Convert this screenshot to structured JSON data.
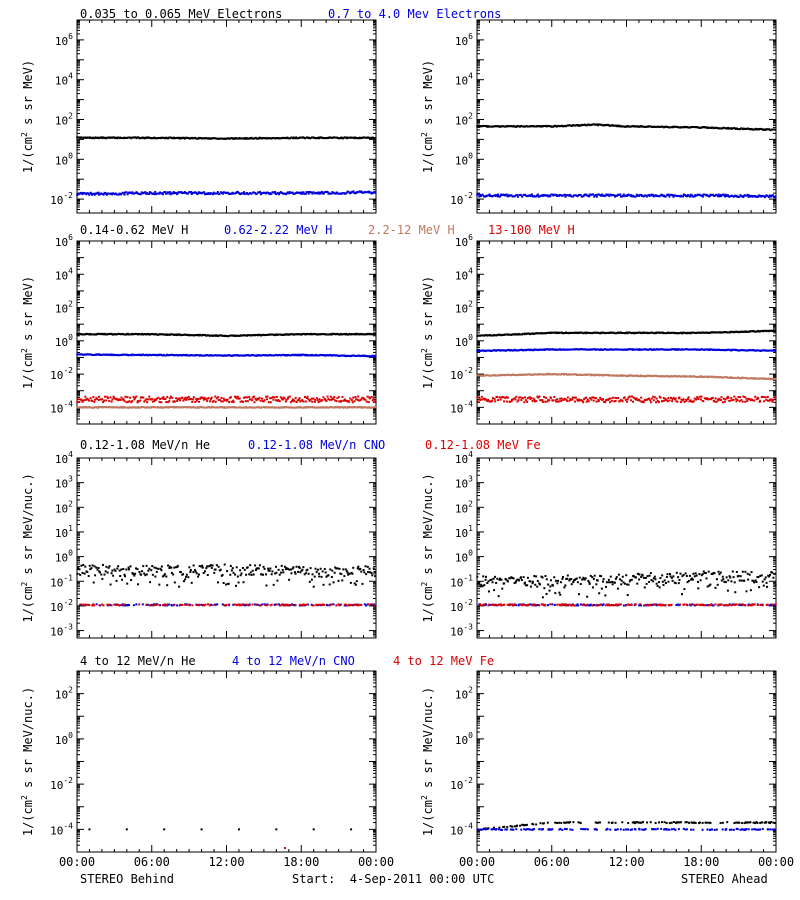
{
  "colors": {
    "black": "#000000",
    "blue": "#0000dd",
    "tan": "#c07860",
    "red": "#dd0000"
  },
  "panel_rows": [
    {
      "legend": [
        {
          "text": "0.035 to 0.065 MeV Electrons",
          "color": "#000000"
        },
        {
          "text": "0.7 to 4.0 Mev Electrons",
          "color": "#0000dd"
        }
      ],
      "ylabel": "1/(cm² s sr MeV)"
    },
    {
      "legend": [
        {
          "text": "0.14-0.62 MeV H",
          "color": "#000000"
        },
        {
          "text": "0.62-2.22 MeV H",
          "color": "#0000dd"
        },
        {
          "text": "2.2-12 MeV H",
          "color": "#c07860"
        },
        {
          "text": "13-100 MeV H",
          "color": "#dd0000"
        }
      ],
      "ylabel": "1/(cm² s sr MeV)"
    },
    {
      "legend": [
        {
          "text": "0.12-1.08 MeV/n He",
          "color": "#000000"
        },
        {
          "text": "0.12-1.08 MeV/n CNO",
          "color": "#0000dd"
        },
        {
          "text": "0.12-1.08 MeV Fe",
          "color": "#dd0000"
        }
      ],
      "ylabel": "1/(cm² s sr MeV/nuc.)"
    },
    {
      "legend": [
        {
          "text": "4 to 12 MeV/n He",
          "color": "#000000"
        },
        {
          "text": "4 to 12 MeV/n CNO",
          "color": "#0000dd"
        },
        {
          "text": "4 to 12 MeV Fe",
          "color": "#dd0000"
        }
      ],
      "ylabel": "1/(cm² s sr MeV/nuc.)"
    }
  ],
  "footer": {
    "left": "STEREO Behind",
    "center": "Start:  4-Sep-2011 00:00 UTC",
    "right": "STEREO Ahead"
  },
  "chart_data": [
    {
      "type": "scatter",
      "yscale": "log",
      "ylim": [
        0.002,
        10000000
      ],
      "xlim": [
        "00:00",
        "24:00"
      ],
      "x_tick_labels": [],
      "y_tick_labels": [
        "10^6",
        "10^4",
        "10^2",
        "10^0",
        "10^-2"
      ],
      "series": [
        {
          "name": "0.035 to 0.065 MeV Electrons",
          "color": "#000000",
          "x": [
            0,
            6,
            12,
            18,
            24
          ],
          "y": [
            12,
            12,
            11,
            12,
            12
          ]
        },
        {
          "name": "0.7 to 4.0 Mev Electrons",
          "color": "#0000dd",
          "x": [
            0,
            6,
            12,
            18,
            24
          ],
          "y": [
            0.018,
            0.02,
            0.02,
            0.02,
            0.022
          ]
        }
      ]
    },
    {
      "type": "scatter",
      "yscale": "log",
      "ylim": [
        0.002,
        10000000
      ],
      "xlim": [
        "00:00",
        "24:00"
      ],
      "x_tick_labels": [],
      "y_tick_labels": [
        "10^6",
        "10^4",
        "10^2",
        "10^0",
        "10^-2"
      ],
      "series": [
        {
          "name": "0.035 to 0.065 MeV Electrons",
          "color": "#000000",
          "x": [
            0,
            6,
            9.5,
            12,
            18,
            24
          ],
          "y": [
            45,
            45,
            55,
            45,
            40,
            30
          ]
        },
        {
          "name": "0.7 to 4.0 Mev Electrons",
          "color": "#0000dd",
          "x": [
            0,
            6,
            12,
            18,
            24
          ],
          "y": [
            0.015,
            0.015,
            0.015,
            0.015,
            0.014
          ]
        }
      ]
    },
    {
      "type": "scatter",
      "yscale": "log",
      "ylim": [
        1e-05,
        1000000
      ],
      "xlim": [
        "00:00",
        "24:00"
      ],
      "x_tick_labels": [],
      "y_tick_labels": [
        "10^6",
        "10^4",
        "10^2",
        "10^0",
        "10^-2",
        "10^-4"
      ],
      "series": [
        {
          "name": "0.14-0.62 MeV H",
          "color": "#000000",
          "x": [
            0,
            6,
            12,
            18,
            24
          ],
          "y": [
            2.5,
            2.5,
            2.0,
            2.5,
            2.5
          ]
        },
        {
          "name": "0.62-2.22 MeV H",
          "color": "#0000dd",
          "x": [
            0,
            6,
            12,
            18,
            24
          ],
          "y": [
            0.15,
            0.14,
            0.13,
            0.14,
            0.12
          ]
        },
        {
          "name": "2.2-12 MeV H",
          "color": "#c07860",
          "x": [
            0,
            6,
            12,
            18,
            24
          ],
          "y": [
            0.0001,
            0.0001,
            0.0001,
            0.0001,
            0.0001
          ]
        },
        {
          "name": "13-100 MeV H",
          "color": "#dd0000",
          "x": [
            0,
            6,
            12,
            18,
            24
          ],
          "y": [
            0.0003,
            0.0003,
            0.0003,
            0.0003,
            0.0003
          ]
        }
      ]
    },
    {
      "type": "scatter",
      "yscale": "log",
      "ylim": [
        1e-05,
        1000000
      ],
      "xlim": [
        "00:00",
        "24:00"
      ],
      "x_tick_labels": [],
      "y_tick_labels": [
        "10^6",
        "10^4",
        "10^2",
        "10^0",
        "10^-2",
        "10^-4"
      ],
      "series": [
        {
          "name": "0.14-0.62 MeV H",
          "color": "#000000",
          "x": [
            0,
            6,
            12,
            18,
            24
          ],
          "y": [
            2.0,
            3.0,
            3.0,
            3.0,
            4.0
          ]
        },
        {
          "name": "0.62-2.22 MeV H",
          "color": "#0000dd",
          "x": [
            0,
            6,
            12,
            18,
            24
          ],
          "y": [
            0.25,
            0.3,
            0.3,
            0.3,
            0.25
          ]
        },
        {
          "name": "2.2-12 MeV H",
          "color": "#c07860",
          "x": [
            0,
            6,
            12,
            18,
            24
          ],
          "y": [
            0.008,
            0.01,
            0.008,
            0.007,
            0.005
          ]
        },
        {
          "name": "13-100 MeV H",
          "color": "#dd0000",
          "x": [
            0,
            6,
            12,
            18,
            24
          ],
          "y": [
            0.0003,
            0.0003,
            0.0003,
            0.0003,
            0.0003
          ]
        }
      ]
    },
    {
      "type": "scatter",
      "yscale": "log",
      "ylim": [
        0.0005,
        10000
      ],
      "xlim": [
        "00:00",
        "24:00"
      ],
      "x_tick_labels": [],
      "y_tick_labels": [
        "10^4",
        "10^3",
        "10^2",
        "10^1",
        "10^0",
        "10^-1",
        "10^-2",
        "10^-3"
      ],
      "series": [
        {
          "name": "0.12-1.08 MeV/n He",
          "color": "#000000",
          "x": [
            0,
            6,
            12,
            18,
            24
          ],
          "y": [
            0.3,
            0.25,
            0.3,
            0.25,
            0.25
          ]
        },
        {
          "name": "0.12-1.08 MeV/n CNO",
          "color": "#0000dd",
          "x": [
            0,
            6,
            12,
            18,
            24
          ],
          "y": [
            0.011,
            0.011,
            0.011,
            0.011,
            0.011
          ]
        },
        {
          "name": "0.12-1.08 MeV Fe",
          "color": "#dd0000",
          "x": [
            0,
            6,
            12,
            18,
            24
          ],
          "y": [
            0.011,
            0.011,
            0.011,
            0.011,
            0.011
          ]
        }
      ]
    },
    {
      "type": "scatter",
      "yscale": "log",
      "ylim": [
        0.0005,
        10000
      ],
      "xlim": [
        "00:00",
        "24:00"
      ],
      "x_tick_labels": [],
      "y_tick_labels": [
        "10^4",
        "10^3",
        "10^2",
        "10^1",
        "10^0",
        "10^-1",
        "10^-2",
        "10^-3"
      ],
      "series": [
        {
          "name": "0.12-1.08 MeV/n He",
          "color": "#000000",
          "x": [
            0,
            6,
            12,
            18,
            24
          ],
          "y": [
            0.1,
            0.1,
            0.12,
            0.15,
            0.15
          ]
        },
        {
          "name": "0.12-1.08 MeV/n CNO",
          "color": "#0000dd",
          "x": [
            0,
            6,
            12,
            18,
            24
          ],
          "y": [
            0.011,
            0.011,
            0.011,
            0.011,
            0.011
          ]
        },
        {
          "name": "0.12-1.08 MeV Fe",
          "color": "#dd0000",
          "x": [
            0,
            6,
            12,
            18,
            24
          ],
          "y": [
            0.011,
            0.011,
            0.011,
            0.011,
            0.011
          ]
        }
      ]
    },
    {
      "type": "scatter",
      "yscale": "log",
      "ylim": [
        1e-05,
        1000
      ],
      "xlim": [
        "00:00",
        "24:00"
      ],
      "x_tick_labels": [
        "00:00",
        "06:00",
        "12:00",
        "18:00",
        "00:00"
      ],
      "y_tick_labels": [
        "10^2",
        "10^0",
        "10^-2",
        "10^-4"
      ],
      "series": [
        {
          "name": "4 to 12 MeV/n He",
          "color": "#000000",
          "x": [
            1,
            4,
            7,
            10,
            13,
            16,
            19,
            22
          ],
          "y": [
            0.0001,
            0.0001,
            0.0001,
            0.0001,
            0.0001,
            0.0001,
            0.0001,
            0.0001
          ]
        },
        {
          "name": "4 to 12 MeV Fe",
          "color": "#dd0000",
          "x": [
            16.7
          ],
          "y": [
            1.5e-05
          ]
        }
      ]
    },
    {
      "type": "scatter",
      "yscale": "log",
      "ylim": [
        1e-05,
        1000
      ],
      "xlim": [
        "00:00",
        "24:00"
      ],
      "x_tick_labels": [
        "00:00",
        "06:00",
        "12:00",
        "18:00",
        "00:00"
      ],
      "y_tick_labels": [
        "10^2",
        "10^0",
        "10^-2",
        "10^-4"
      ],
      "series": [
        {
          "name": "4 to 12 MeV/n He",
          "color": "#000000",
          "x": [
            0,
            6,
            12,
            18,
            24
          ],
          "y": [
            0.0001,
            0.0002,
            0.0002,
            0.0002,
            0.0002
          ]
        },
        {
          "name": "4 to 12 MeV/n CNO",
          "color": "#0000dd",
          "x": [
            0,
            6,
            12,
            18,
            24
          ],
          "y": [
            0.0001,
            0.0001,
            0.0001,
            0.0001,
            0.0001
          ]
        }
      ]
    }
  ]
}
